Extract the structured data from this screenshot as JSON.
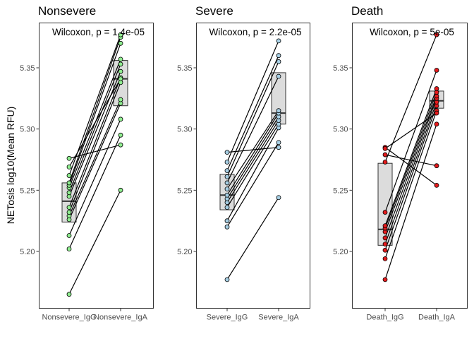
{
  "chart_data": {
    "type": "scatter",
    "ylabel": "NETosis log10(Mean RFU)",
    "ylim": [
      5.15,
      5.38
    ],
    "yticks": [
      5.2,
      5.25,
      5.3,
      5.35
    ],
    "ytick_labels": [
      "5.20",
      "5.25",
      "5.30",
      "5.35"
    ],
    "grid": false,
    "panels": [
      {
        "title": "Nonsevere",
        "stat_label": "Wilcoxon, p = 1.4e-05",
        "color": "#90ee90",
        "categories": [
          "Nonsevere_IgG",
          "Nonsevere_IgA"
        ],
        "box": [
          {
            "q1": 5.224,
            "median": 5.241,
            "q3": 5.256
          },
          {
            "q1": 5.319,
            "median": 5.341,
            "q3": 5.356
          }
        ],
        "pairs": [
          [
            5.165,
            5.25
          ],
          [
            5.202,
            5.295
          ],
          [
            5.213,
            5.308
          ],
          [
            5.226,
            5.321
          ],
          [
            5.229,
            5.324
          ],
          [
            5.232,
            5.338
          ],
          [
            5.236,
            5.342
          ],
          [
            5.245,
            5.347
          ],
          [
            5.248,
            5.353
          ],
          [
            5.252,
            5.357
          ],
          [
            5.254,
            5.37
          ],
          [
            5.256,
            5.375
          ],
          [
            5.262,
            5.377
          ],
          [
            5.269,
            5.341
          ],
          [
            5.276,
            5.287
          ]
        ]
      },
      {
        "title": "Severe",
        "stat_label": "Wilcoxon, p = 2.2e-05",
        "color": "#a6cee3",
        "categories": [
          "Severe_IgG",
          "Severe_IgA"
        ],
        "box": [
          {
            "q1": 5.234,
            "median": 5.246,
            "q3": 5.263
          },
          {
            "q1": 5.304,
            "median": 5.313,
            "q3": 5.346
          }
        ],
        "pairs": [
          [
            5.177,
            5.244
          ],
          [
            5.22,
            5.289
          ],
          [
            5.225,
            5.301
          ],
          [
            5.236,
            5.304
          ],
          [
            5.24,
            5.307
          ],
          [
            5.243,
            5.31
          ],
          [
            5.246,
            5.313
          ],
          [
            5.251,
            5.315
          ],
          [
            5.256,
            5.343
          ],
          [
            5.261,
            5.355
          ],
          [
            5.266,
            5.36
          ],
          [
            5.273,
            5.372
          ],
          [
            5.281,
            5.285
          ]
        ]
      },
      {
        "title": "Death",
        "stat_label": "Wilcoxon, p = 5e-05",
        "color": "#e31a1c",
        "categories": [
          "Death_IgG",
          "Death_IgA"
        ],
        "box": [
          {
            "q1": 5.205,
            "median": 5.218,
            "q3": 5.272
          },
          {
            "q1": 5.317,
            "median": 5.323,
            "q3": 5.331
          }
        ],
        "pairs": [
          [
            5.177,
            5.304
          ],
          [
            5.194,
            5.315
          ],
          [
            5.201,
            5.319
          ],
          [
            5.206,
            5.322
          ],
          [
            5.211,
            5.325
          ],
          [
            5.216,
            5.327
          ],
          [
            5.219,
            5.33
          ],
          [
            5.221,
            5.333
          ],
          [
            5.232,
            5.348
          ],
          [
            5.273,
            5.377
          ],
          [
            5.279,
            5.27
          ],
          [
            5.285,
            5.254
          ],
          [
            5.284,
            5.313
          ]
        ]
      }
    ]
  }
}
